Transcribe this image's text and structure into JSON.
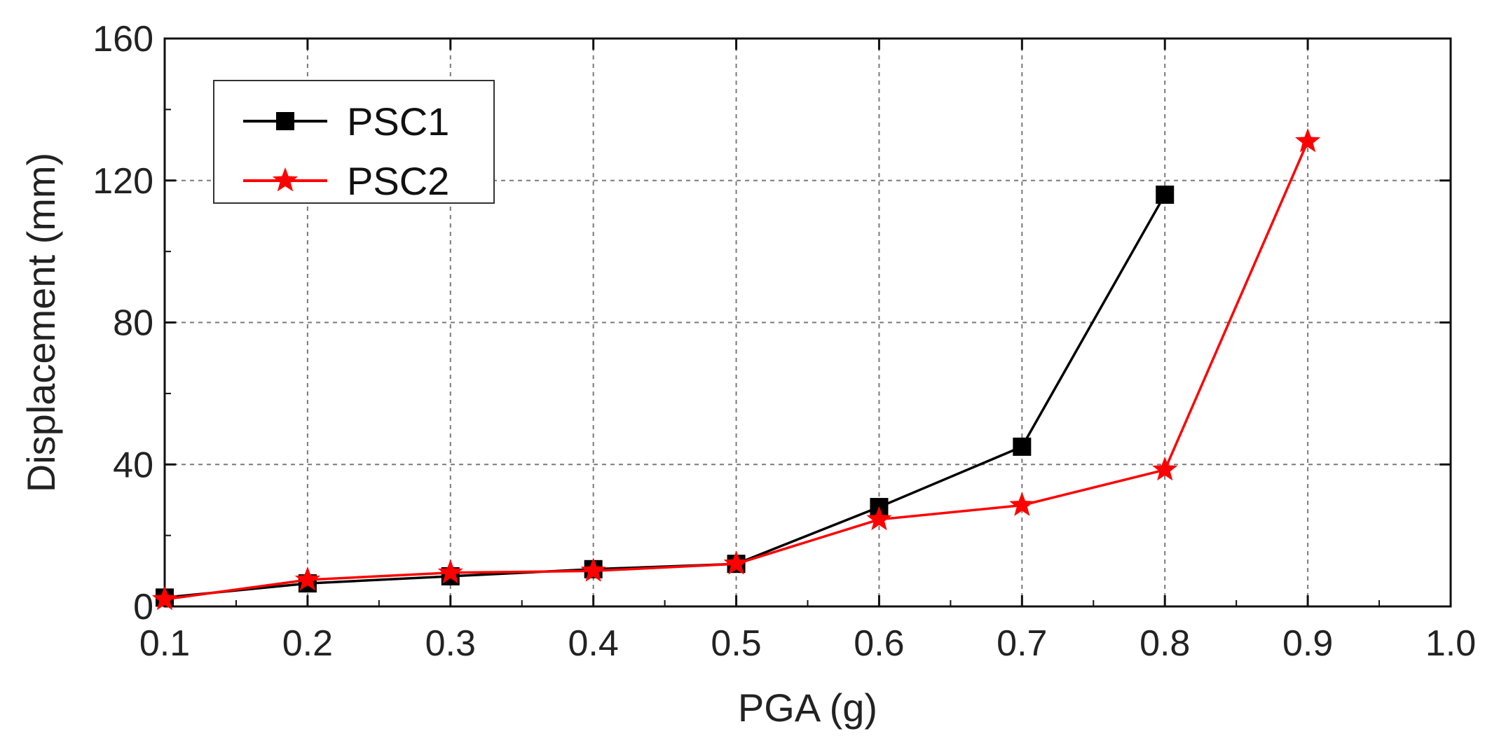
{
  "chart_data": {
    "type": "line",
    "xlabel": "PGA (g)",
    "ylabel": "Displacement (mm)",
    "xlim": [
      0.1,
      1.0
    ],
    "ylim": [
      0,
      160
    ],
    "xticks": [
      "0.1",
      "0.2",
      "0.3",
      "0.4",
      "0.5",
      "0.6",
      "0.7",
      "0.8",
      "0.9",
      "1.0"
    ],
    "yticks": [
      "0",
      "40",
      "80",
      "120",
      "160"
    ],
    "grid": true,
    "legend_position": "top-left",
    "series": [
      {
        "name": "PSC1",
        "color": "#000000",
        "marker": "square",
        "x": [
          0.1,
          0.2,
          0.3,
          0.4,
          0.5,
          0.6,
          0.7,
          0.8
        ],
        "y": [
          2.5,
          6.5,
          8.5,
          10.5,
          12.0,
          28.0,
          45.0,
          116.0
        ]
      },
      {
        "name": "PSC2",
        "color": "#ff0000",
        "marker": "star",
        "x": [
          0.1,
          0.2,
          0.3,
          0.4,
          0.5,
          0.6,
          0.7,
          0.8,
          0.9
        ],
        "y": [
          2.0,
          7.5,
          9.5,
          10.0,
          12.0,
          24.5,
          28.5,
          38.5,
          131.0
        ]
      }
    ]
  }
}
